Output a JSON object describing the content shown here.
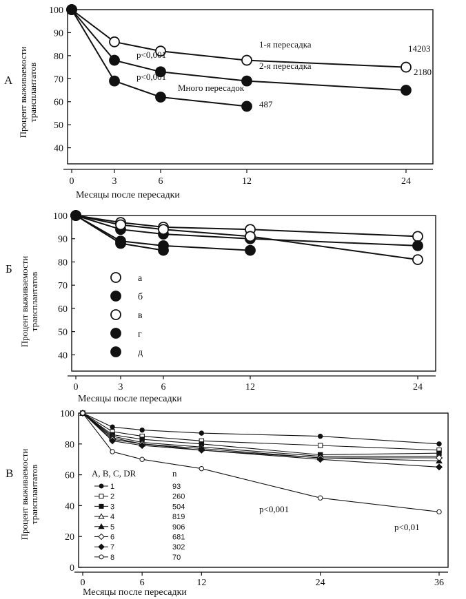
{
  "chart_data": [
    {
      "panel": "А",
      "type": "line",
      "xlabel": "Месяцы после пересадки",
      "ylabel": [
        "Процент выживаемости",
        "трансплантатов"
      ],
      "x_ticks": [
        "0",
        "3",
        "6",
        "12",
        "24"
      ],
      "y_ticks": [
        "40",
        "50",
        "60",
        "70",
        "80",
        "90",
        "100"
      ],
      "xlim": [
        0,
        26
      ],
      "ylim": [
        33,
        100
      ],
      "series": [
        {
          "name": "1-я пересадка",
          "marker": "open",
          "x": [
            0,
            3,
            6,
            12,
            24
          ],
          "y": [
            100,
            86,
            82,
            78,
            75
          ],
          "n": "14203"
        },
        {
          "name": "2-я пересадка",
          "marker": "filled",
          "x": [
            0,
            3,
            6,
            12,
            24
          ],
          "y": [
            100,
            78,
            73,
            69,
            65
          ],
          "n": "2180"
        },
        {
          "name": "Много пересадок",
          "marker": "filled",
          "x": [
            0,
            3,
            6,
            12
          ],
          "y": [
            100,
            69,
            62,
            58
          ],
          "n": "487"
        }
      ],
      "annotations": [
        "p<0,001",
        "p<0,001"
      ]
    },
    {
      "panel": "Б",
      "type": "line",
      "xlabel": "Месяцы после пересадки",
      "ylabel": [
        "Процент выживаемости",
        "трансплантатов"
      ],
      "x_ticks": [
        "0",
        "3",
        "6",
        "12",
        "24"
      ],
      "y_ticks": [
        "40",
        "50",
        "60",
        "70",
        "80",
        "90",
        "100"
      ],
      "xlim": [
        0,
        26
      ],
      "ylim": [
        33,
        100
      ],
      "series": [
        {
          "name": "а",
          "marker": "open",
          "x": [
            0,
            3,
            6,
            12,
            24
          ],
          "y": [
            100,
            97,
            95,
            94,
            91
          ]
        },
        {
          "name": "б",
          "marker": "filled",
          "x": [
            0,
            3,
            6,
            12,
            24
          ],
          "y": [
            100,
            94,
            92,
            90,
            87
          ]
        },
        {
          "name": "в",
          "marker": "open",
          "x": [
            0,
            3,
            6,
            12,
            24
          ],
          "y": [
            100,
            96,
            94,
            91,
            81
          ]
        },
        {
          "name": "г",
          "marker": "filled",
          "x": [
            0,
            3,
            6,
            12
          ],
          "y": [
            100,
            89,
            87,
            85
          ]
        },
        {
          "name": "д",
          "marker": "filled",
          "x": [
            0,
            3,
            6
          ],
          "y": [
            100,
            88,
            85
          ]
        }
      ]
    },
    {
      "panel": "В",
      "type": "line",
      "xlabel": "Месяцы после пересадки",
      "ylabel": [
        "Процент выживаемости",
        "трансплантатов"
      ],
      "x_ticks": [
        "0",
        "6",
        "12",
        "24",
        "36"
      ],
      "y_ticks": [
        "0",
        "20",
        "40",
        "60",
        "80",
        "100"
      ],
      "xlim": [
        0,
        36
      ],
      "ylim": [
        0,
        100
      ],
      "legend_header": [
        "A, B, C, DR",
        "n"
      ],
      "series": [
        {
          "name": "1",
          "n": "93",
          "marker": "filled-circle",
          "x": [
            0,
            3,
            6,
            12,
            24,
            36
          ],
          "y": [
            100,
            91,
            89,
            87,
            85,
            80
          ]
        },
        {
          "name": "2",
          "n": "260",
          "marker": "open-square",
          "x": [
            0,
            3,
            6,
            12,
            24,
            36
          ],
          "y": [
            100,
            88,
            85,
            82,
            79,
            76
          ]
        },
        {
          "name": "3",
          "n": "504",
          "marker": "filled-square",
          "x": [
            0,
            3,
            6,
            12,
            24,
            36
          ],
          "y": [
            100,
            86,
            83,
            80,
            73,
            74
          ]
        },
        {
          "name": "4",
          "n": "819",
          "marker": "open-triangle",
          "x": [
            0,
            3,
            6,
            12,
            24,
            36
          ],
          "y": [
            100,
            85,
            81,
            78,
            72,
            72
          ]
        },
        {
          "name": "5",
          "n": "906",
          "marker": "filled-triangle",
          "x": [
            0,
            3,
            6,
            12,
            24,
            36
          ],
          "y": [
            100,
            84,
            80,
            77,
            71,
            69
          ]
        },
        {
          "name": "6",
          "n": "681",
          "marker": "open-diamond",
          "x": [
            0,
            3,
            6,
            12,
            24,
            36
          ],
          "y": [
            100,
            83,
            80,
            76,
            71,
            71
          ]
        },
        {
          "name": "7",
          "n": "302",
          "marker": "filled-diamond",
          "x": [
            0,
            3,
            6,
            12,
            24,
            36
          ],
          "y": [
            100,
            82,
            79,
            76,
            70,
            65
          ]
        },
        {
          "name": "8",
          "n": "70",
          "marker": "open-circle",
          "x": [
            0,
            3,
            6,
            12,
            24,
            36
          ],
          "y": [
            100,
            75,
            70,
            64,
            45,
            36
          ]
        }
      ],
      "annotations": [
        "p<0,001",
        "p<0,01"
      ]
    }
  ]
}
